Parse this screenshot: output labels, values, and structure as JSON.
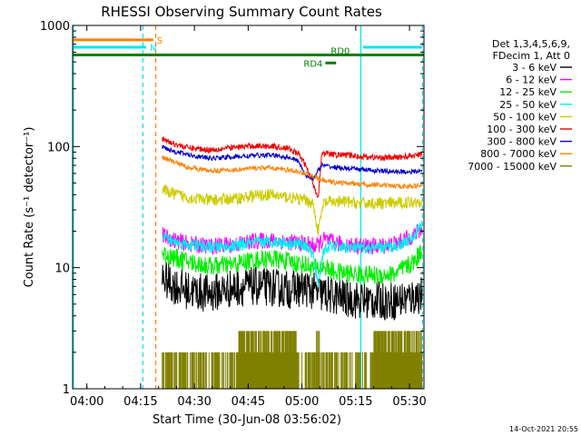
{
  "chart_data": {
    "type": "line",
    "title": "RHESSI Observing Summary Count Rates",
    "xlabel": "Start Time (30-Jun-08 03:56:02)",
    "ylabel": "Count Rate (s⁻¹ detector⁻¹)",
    "yscale": "log",
    "ylim": [
      1,
      1000
    ],
    "xlim_minutes_after_start": [
      0,
      98
    ],
    "x_ticks": [
      "04:00",
      "04:15",
      "04:30",
      "04:45",
      "05:00",
      "05:15",
      "05:30"
    ],
    "x_tick_minutes": [
      3.97,
      18.97,
      33.97,
      48.97,
      63.97,
      78.97,
      93.97
    ],
    "y_ticks": [
      "1",
      "10",
      "100",
      "1000"
    ],
    "y_tick_values": [
      1,
      10,
      100,
      1000
    ],
    "legend": {
      "placement": "right",
      "header": [
        "Det 1,3,4,5,6,9,",
        "FDecim 1, Att 0"
      ],
      "entries": [
        {
          "label": "3 - 6 keV",
          "color": "#000000"
        },
        {
          "label": "6 - 12 keV",
          "color": "#ff00ff"
        },
        {
          "label": "12 - 25 keV",
          "color": "#00ee00"
        },
        {
          "label": "25 - 50 keV",
          "color": "#00eeee"
        },
        {
          "label": "50 - 100 keV",
          "color": "#cccc00"
        },
        {
          "label": "100 - 300 keV",
          "color": "#ee0000"
        },
        {
          "label": "300 - 800 keV",
          "color": "#0000cc"
        },
        {
          "label": "800 - 7000 keV",
          "color": "#ff8000"
        },
        {
          "label": "7000 - 15000 keV",
          "color": "#808000"
        }
      ]
    },
    "annotations": {
      "flag_bars": [
        {
          "label": "S",
          "color": "#ff8000",
          "x_start": 0,
          "x_end": 22.5,
          "y": 760
        },
        {
          "label": "N",
          "color": "#00e5ee",
          "x_start": 0,
          "x_end": 20.5,
          "y": 660
        },
        {
          "label": "N",
          "color": "#00e5ee",
          "x_start": 81,
          "x_end": 97.5,
          "y": 660,
          "show_label": false
        },
        {
          "label": "RD0",
          "color": "#008000",
          "x_start": 0,
          "x_end": 98,
          "y": 570,
          "label_x": 71
        },
        {
          "label": "RD4",
          "color": "#008000",
          "x_start": 70.5,
          "x_end": 73.5,
          "y": 490
        }
      ],
      "vlines": [
        {
          "x": 0.2,
          "color": "#00e5ee",
          "style": "solid"
        },
        {
          "x": 19.6,
          "color": "#00e5ee",
          "style": "dashed"
        },
        {
          "x": 23.2,
          "color": "#ff8000",
          "style": "dashed"
        },
        {
          "x": 80.4,
          "color": "#00e5ee",
          "style": "solid"
        },
        {
          "x": 97.6,
          "color": "#00e5ee",
          "style": "dashed"
        }
      ]
    },
    "data_start_minute": 25,
    "data_end_minute": 97.5,
    "series": [
      {
        "name": "3 - 6 keV",
        "color": "#000000",
        "noise": 0.16,
        "x": [
          25,
          28,
          32,
          38,
          45,
          50,
          55,
          60,
          65,
          68,
          72,
          76,
          80,
          85,
          90,
          95,
          97.5
        ],
        "y": [
          8.2,
          7.2,
          6.5,
          6.1,
          6.8,
          7.0,
          6.9,
          6.6,
          6.8,
          6.2,
          5.9,
          5.6,
          5.4,
          5.3,
          5.3,
          5.7,
          6.1
        ]
      },
      {
        "name": "6 - 12 keV",
        "color": "#ff00ff",
        "noise": 0.07,
        "x": [
          25,
          28,
          32,
          38,
          45,
          50,
          55,
          60,
          65,
          68,
          70,
          73,
          76,
          80,
          85,
          90,
          95,
          97.5
        ],
        "y": [
          18.5,
          17.0,
          15.8,
          15.0,
          15.5,
          16.5,
          16.8,
          16.3,
          15.8,
          15.0,
          17.0,
          16.0,
          15.5,
          15.2,
          15.0,
          15.8,
          18.5,
          21.0
        ]
      },
      {
        "name": "12 - 25 keV",
        "color": "#00ee00",
        "noise": 0.08,
        "x": [
          25,
          28,
          32,
          38,
          45,
          50,
          55,
          60,
          65,
          68,
          70,
          73,
          76,
          80,
          85,
          90,
          95,
          97.5
        ],
        "y": [
          13.2,
          12.2,
          11.2,
          10.3,
          10.6,
          11.5,
          11.9,
          11.3,
          10.5,
          9.8,
          10.2,
          9.2,
          9.0,
          8.8,
          8.6,
          8.9,
          11.0,
          14.0
        ]
      },
      {
        "name": "25 - 50 keV",
        "color": "#00eeee",
        "noise": 0.05,
        "x": [
          25,
          28,
          32,
          38,
          45,
          50,
          55,
          60,
          65,
          67,
          68.5,
          70,
          72,
          76,
          80,
          85,
          90,
          95,
          97.5
        ],
        "y": [
          18.5,
          16.5,
          15.5,
          14.8,
          15.0,
          16.0,
          16.5,
          16.0,
          15.5,
          13.0,
          7.0,
          14.0,
          15.0,
          14.8,
          14.5,
          14.5,
          15.0,
          17.5,
          24.0
        ]
      },
      {
        "name": "50 - 100 keV",
        "color": "#cccc00",
        "noise": 0.05,
        "x": [
          25,
          28,
          32,
          38,
          45,
          50,
          55,
          60,
          65,
          67,
          68.5,
          70,
          72,
          76,
          80,
          85,
          90,
          95,
          97.5
        ],
        "y": [
          44,
          41,
          38,
          36,
          37,
          39,
          40,
          38,
          36,
          34,
          20,
          34,
          35,
          35,
          34,
          34,
          34,
          35,
          36
        ]
      },
      {
        "name": "100 - 300 keV",
        "color": "#ee0000",
        "noise": 0.025,
        "x": [
          25,
          28,
          32,
          38,
          45,
          50,
          55,
          60,
          63,
          65,
          67,
          68.5,
          69.5,
          72,
          76,
          80,
          85,
          90,
          95,
          97.5
        ],
        "y": [
          115,
          106,
          98,
          94,
          98,
          101,
          101,
          97,
          87,
          70,
          50,
          38,
          88,
          86,
          85,
          83,
          81,
          81,
          84,
          86
        ]
      },
      {
        "name": "300 - 800 keV",
        "color": "#0000cc",
        "noise": 0.02,
        "x": [
          25,
          28,
          32,
          38,
          45,
          50,
          55,
          60,
          63,
          65,
          67,
          69.5,
          72,
          76,
          80,
          85,
          90,
          95,
          97.5
        ],
        "y": [
          100,
          92,
          86,
          80,
          82,
          84,
          85,
          82,
          76,
          58,
          54,
          70,
          68,
          66,
          65,
          63,
          62,
          62,
          63
        ]
      },
      {
        "name": "800 - 7000 keV",
        "color": "#ff8000",
        "noise": 0.02,
        "x": [
          25,
          28,
          32,
          38,
          45,
          50,
          55,
          60,
          65,
          67,
          69.5,
          72,
          76,
          80,
          85,
          90,
          95,
          97.5
        ],
        "y": [
          82,
          75,
          68,
          63,
          64,
          66,
          67,
          64,
          60,
          57,
          53,
          51,
          50,
          49,
          48,
          47,
          47,
          48
        ]
      }
    ],
    "activity_band": {
      "name": "7000 - 15000 keV",
      "color": "#808000",
      "x_start": 25,
      "x_end": 97.5,
      "base_level": 2.0,
      "top_level": 3.0,
      "dense_ranges": [
        [
          46,
          63
        ],
        [
          68,
          69
        ],
        [
          84,
          97.5
        ]
      ]
    }
  },
  "footer": {
    "timestamp": "14-Oct-2021 20:55"
  }
}
